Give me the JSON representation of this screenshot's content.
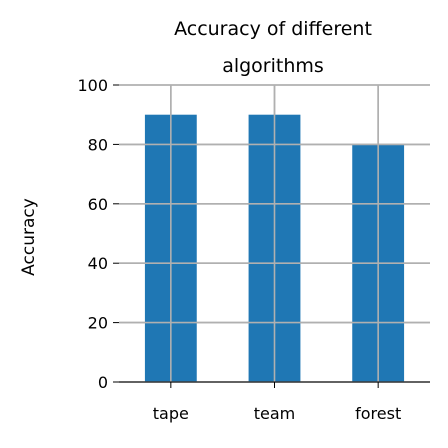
{
  "chart_data": {
    "type": "bar",
    "title": "Accuracy of different algorithms",
    "title_lines": [
      "Accuracy of different",
      "algorithms"
    ],
    "xlabel": "",
    "ylabel": "Accuracy",
    "categories": [
      "tape",
      "team",
      "forest"
    ],
    "values": [
      90,
      90,
      80
    ],
    "ylim": [
      0,
      100
    ],
    "yticks": [
      0,
      20,
      40,
      60,
      80,
      100
    ],
    "grid": true,
    "bar_color": "#1f77b4"
  }
}
